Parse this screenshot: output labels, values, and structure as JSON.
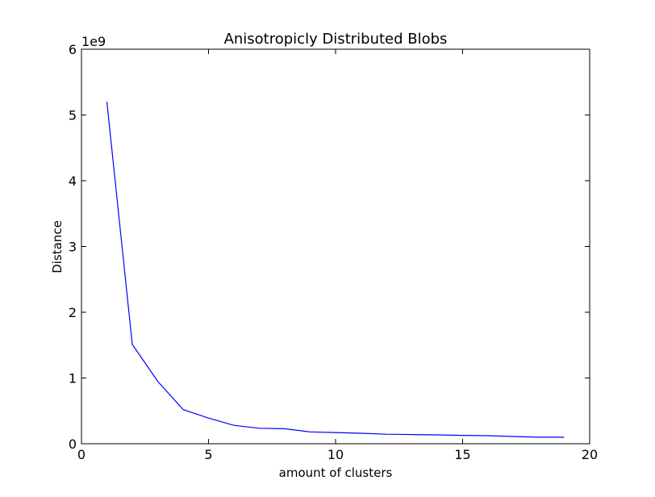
{
  "chart_data": {
    "type": "line",
    "title": "Anisotropicly Distributed Blobs",
    "xlabel": "amount of clusters",
    "ylabel": "Distance",
    "y_offset_label": "1e9",
    "xlim": [
      0,
      20
    ],
    "ylim": [
      0,
      6
    ],
    "x_ticks": [
      0,
      5,
      10,
      15,
      20
    ],
    "y_ticks": [
      0,
      1,
      2,
      3,
      4,
      5,
      6
    ],
    "x_tick_labels": [
      "0",
      "5",
      "10",
      "15",
      "20"
    ],
    "y_tick_labels": [
      "0",
      "1",
      "2",
      "3",
      "4",
      "5",
      "6"
    ],
    "grid": false,
    "series": [
      {
        "color": "#0000ff",
        "x": [
          1,
          2,
          3,
          4,
          5,
          6,
          7,
          8,
          9,
          10,
          11,
          12,
          13,
          14,
          15,
          16,
          17,
          18,
          19
        ],
        "y": [
          5.2,
          1.51,
          0.95,
          0.52,
          0.39,
          0.28,
          0.235,
          0.228,
          0.18,
          0.17,
          0.16,
          0.145,
          0.14,
          0.135,
          0.128,
          0.123,
          0.11,
          0.1,
          0.1
        ]
      }
    ]
  }
}
